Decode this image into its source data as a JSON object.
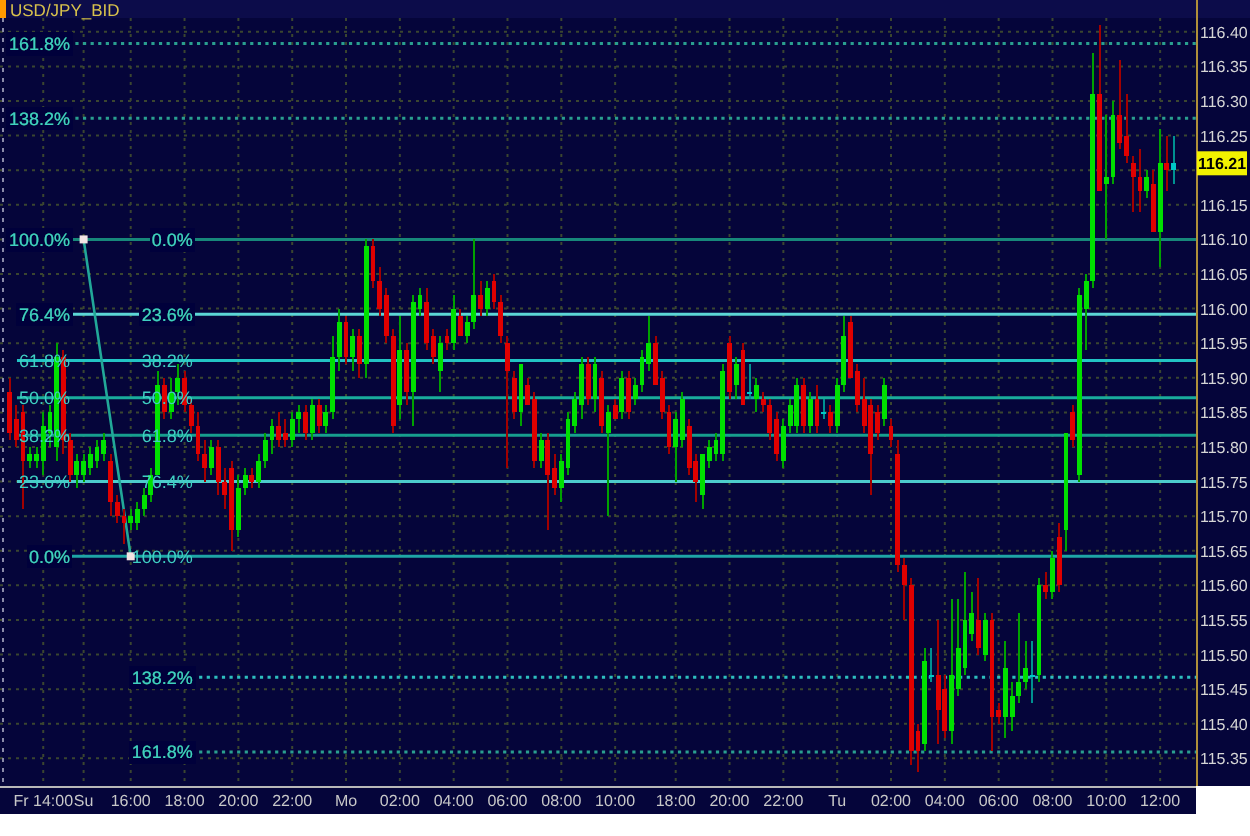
{
  "chart_data": {
    "type": "candlestick",
    "title": "USD/JPY_BID",
    "categories": [
      null,
      null,
      null,
      null,
      null,
      "Fr 14:00",
      null,
      null,
      null,
      null,
      null,
      "Su",
      null,
      null,
      null,
      null,
      null,
      null,
      "16:00",
      null,
      null,
      null,
      null,
      null,
      null,
      null,
      "18:00",
      null,
      null,
      null,
      null,
      null,
      null,
      null,
      "20:00",
      null,
      null,
      null,
      null,
      null,
      null,
      null,
      "22:00",
      null,
      null,
      null,
      null,
      null,
      null,
      null,
      "Mo",
      null,
      null,
      null,
      null,
      null,
      null,
      null,
      "02:00",
      null,
      null,
      null,
      null,
      null,
      null,
      null,
      "04:00",
      null,
      null,
      null,
      null,
      null,
      null,
      null,
      "06:00",
      null,
      null,
      null,
      null,
      null,
      null,
      null,
      "08:00",
      null,
      null,
      null,
      null,
      null,
      null,
      null,
      "10:00",
      null,
      null,
      null,
      null,
      null,
      null,
      null,
      null,
      "18:00",
      null,
      null,
      null,
      null,
      null,
      null,
      null,
      "20:00",
      null,
      null,
      null,
      null,
      null,
      null,
      null,
      "22:00",
      null,
      null,
      null,
      null,
      null,
      null,
      null,
      "Tu",
      null,
      null,
      null,
      null,
      null,
      null,
      null,
      "02:00",
      null,
      null,
      null,
      null,
      null,
      null,
      null,
      "04:00",
      null,
      null,
      null,
      null,
      null,
      null,
      null,
      "06:00",
      null,
      null,
      null,
      null,
      null,
      null,
      null,
      "08:00",
      null,
      null,
      null,
      null,
      null,
      null,
      null,
      "10:00",
      null,
      null,
      null,
      null,
      null,
      null,
      null,
      "12:00",
      null,
      null
    ],
    "ohlc": [
      [
        115.88,
        115.9,
        115.81,
        115.82
      ],
      [
        115.84,
        115.86,
        115.8,
        115.81
      ],
      [
        115.85,
        115.86,
        115.71,
        115.78
      ],
      [
        115.78,
        115.8,
        115.77,
        115.79
      ],
      [
        115.78,
        115.8,
        115.77,
        115.79
      ],
      [
        115.78,
        115.85,
        115.76,
        115.83
      ],
      [
        115.82,
        115.86,
        115.8,
        115.85
      ],
      [
        115.8,
        115.95,
        115.78,
        115.93
      ],
      [
        115.93,
        115.94,
        115.79,
        115.81
      ],
      [
        115.81,
        115.82,
        115.75,
        115.76
      ],
      [
        115.76,
        115.79,
        115.74,
        115.78
      ],
      [
        115.76,
        115.79,
        115.75,
        115.78
      ],
      [
        115.77,
        115.8,
        115.76,
        115.79
      ],
      [
        115.78,
        115.81,
        115.77,
        115.8
      ],
      [
        115.79,
        115.82,
        115.78,
        115.81
      ],
      [
        115.78,
        115.79,
        115.7,
        115.72
      ],
      [
        115.72,
        115.73,
        115.69,
        115.7
      ],
      [
        115.7,
        115.71,
        115.66,
        115.69
      ],
      [
        115.69,
        115.71,
        115.68,
        115.7
      ],
      [
        115.69,
        115.72,
        115.68,
        115.71
      ],
      [
        115.71,
        115.74,
        115.7,
        115.73
      ],
      [
        115.73,
        115.77,
        115.72,
        115.76
      ],
      [
        115.76,
        115.91,
        115.76,
        115.89
      ],
      [
        115.89,
        115.9,
        115.84,
        115.85
      ],
      [
        115.85,
        115.9,
        115.84,
        115.88
      ],
      [
        115.88,
        115.92,
        115.86,
        115.9
      ],
      [
        115.9,
        115.91,
        115.85,
        115.86
      ],
      [
        115.86,
        115.87,
        115.82,
        115.83
      ],
      [
        115.83,
        115.85,
        115.78,
        115.79
      ],
      [
        115.79,
        115.81,
        115.75,
        115.77
      ],
      [
        115.77,
        115.81,
        115.76,
        115.8
      ],
      [
        115.8,
        115.81,
        115.73,
        115.75
      ],
      [
        115.75,
        115.77,
        115.71,
        115.73
      ],
      [
        115.77,
        115.78,
        115.65,
        115.68
      ],
      [
        115.68,
        115.76,
        115.67,
        115.74
      ],
      [
        115.74,
        115.77,
        115.73,
        115.76
      ],
      [
        115.76,
        115.77,
        115.74,
        115.75
      ],
      [
        115.75,
        115.79,
        115.74,
        115.78
      ],
      [
        115.78,
        115.82,
        115.77,
        115.81
      ],
      [
        115.81,
        115.84,
        115.79,
        115.83
      ],
      [
        115.83,
        115.85,
        115.8,
        115.81
      ],
      [
        115.82,
        115.84,
        115.8,
        115.81
      ],
      [
        115.81,
        115.85,
        115.8,
        115.84
      ],
      [
        115.84,
        115.86,
        115.82,
        115.85
      ],
      [
        115.85,
        115.86,
        115.81,
        115.82
      ],
      [
        115.82,
        115.87,
        115.81,
        115.86
      ],
      [
        115.86,
        115.87,
        115.82,
        115.83
      ],
      [
        115.83,
        115.86,
        115.82,
        115.85
      ],
      [
        115.85,
        115.96,
        115.84,
        115.93
      ],
      [
        115.93,
        116.0,
        115.91,
        115.98
      ],
      [
        115.98,
        115.99,
        115.92,
        115.93
      ],
      [
        115.93,
        115.97,
        115.91,
        115.96
      ],
      [
        115.96,
        115.97,
        115.9,
        115.92
      ],
      [
        115.92,
        116.1,
        115.9,
        116.09
      ],
      [
        116.09,
        116.1,
        116.03,
        116.04
      ],
      [
        116.04,
        116.06,
        115.99,
        116.0
      ],
      [
        116.02,
        116.03,
        115.95,
        115.96
      ],
      [
        115.96,
        115.97,
        115.82,
        115.83
      ],
      [
        115.86,
        115.99,
        115.84,
        115.94
      ],
      [
        115.94,
        115.95,
        115.86,
        115.88
      ],
      [
        115.88,
        116.02,
        115.83,
        116.01
      ],
      [
        116.0,
        116.03,
        115.99,
        116.02
      ],
      [
        116.01,
        116.03,
        115.94,
        115.95
      ],
      [
        115.96,
        115.97,
        115.92,
        115.93
      ],
      [
        115.91,
        115.96,
        115.88,
        115.95
      ],
      [
        115.96,
        115.97,
        115.94,
        115.95
      ],
      [
        115.95,
        116.02,
        115.94,
        116.0
      ],
      [
        115.99,
        116.0,
        115.96,
        115.96
      ],
      [
        115.96,
        115.99,
        115.95,
        115.98
      ],
      [
        115.98,
        116.1,
        115.97,
        116.02
      ],
      [
        116.02,
        116.04,
        115.99,
        116.0
      ],
      [
        116.0,
        116.04,
        115.99,
        116.03
      ],
      [
        116.04,
        116.05,
        116.0,
        116.01
      ],
      [
        116.01,
        116.02,
        115.95,
        115.96
      ],
      [
        115.95,
        115.96,
        115.77,
        115.91
      ],
      [
        115.9,
        115.91,
        115.84,
        115.85
      ],
      [
        115.85,
        115.92,
        115.83,
        115.92
      ],
      [
        115.89,
        115.9,
        115.86,
        115.86
      ],
      [
        115.87,
        115.88,
        115.77,
        115.78
      ],
      [
        115.78,
        115.82,
        115.77,
        115.81
      ],
      [
        115.81,
        115.82,
        115.68,
        115.76
      ],
      [
        115.77,
        115.79,
        115.73,
        115.74
      ],
      [
        115.74,
        115.79,
        115.72,
        115.78
      ],
      [
        115.77,
        115.85,
        115.76,
        115.84
      ],
      [
        115.83,
        115.88,
        115.82,
        115.87
      ],
      [
        115.86,
        115.93,
        115.84,
        115.92
      ],
      [
        115.92,
        115.93,
        115.86,
        115.87
      ],
      [
        115.87,
        115.93,
        115.85,
        115.92
      ],
      [
        115.9,
        115.91,
        115.82,
        115.83
      ],
      [
        115.82,
        115.86,
        115.7,
        115.85
      ],
      [
        115.86,
        115.87,
        115.84,
        115.84
      ],
      [
        115.85,
        115.91,
        115.84,
        115.9
      ],
      [
        115.9,
        115.91,
        115.84,
        115.85
      ],
      [
        115.87,
        115.9,
        115.86,
        115.89
      ],
      [
        115.89,
        115.94,
        115.88,
        115.93
      ],
      [
        115.92,
        115.99,
        115.91,
        115.95
      ],
      [
        115.95,
        115.96,
        115.89,
        115.89
      ],
      [
        115.9,
        115.91,
        115.84,
        115.85
      ],
      [
        115.85,
        115.86,
        115.79,
        115.8
      ],
      [
        115.8,
        115.85,
        115.75,
        115.84
      ],
      [
        115.81,
        115.88,
        115.8,
        115.87
      ],
      [
        115.83,
        115.84,
        115.76,
        115.77
      ],
      [
        115.78,
        115.79,
        115.72,
        115.75
      ],
      [
        115.73,
        115.79,
        115.71,
        115.79
      ],
      [
        115.78,
        115.81,
        115.77,
        115.8
      ],
      [
        115.79,
        115.82,
        115.78,
        115.81
      ],
      [
        115.79,
        115.92,
        115.78,
        115.91
      ],
      [
        115.95,
        115.96,
        115.87,
        115.88
      ],
      [
        115.89,
        115.93,
        115.87,
        115.92
      ],
      [
        115.94,
        115.95,
        115.86,
        115.86
      ],
      [
        115.88,
        115.92,
        115.87,
        115.88
      ],
      [
        115.87,
        115.9,
        115.85,
        115.89
      ],
      [
        115.87,
        115.88,
        115.85,
        115.86
      ],
      [
        115.86,
        115.87,
        115.81,
        115.82
      ],
      [
        115.84,
        115.85,
        115.78,
        115.79
      ],
      [
        115.78,
        115.84,
        115.77,
        115.83
      ],
      [
        115.83,
        115.87,
        115.82,
        115.86
      ],
      [
        115.83,
        115.9,
        115.82,
        115.89
      ],
      [
        115.89,
        115.9,
        115.82,
        115.83
      ],
      [
        115.83,
        115.88,
        115.82,
        115.87
      ],
      [
        115.87,
        115.89,
        115.82,
        115.83
      ],
      [
        115.85,
        115.87,
        115.84,
        115.85
      ],
      [
        115.85,
        115.86,
        115.82,
        115.83
      ],
      [
        115.83,
        115.9,
        115.82,
        115.89
      ],
      [
        115.89,
        115.99,
        115.88,
        115.96
      ],
      [
        115.98,
        115.99,
        115.9,
        115.9
      ],
      [
        115.91,
        115.92,
        115.85,
        115.86
      ],
      [
        115.87,
        115.9,
        115.82,
        115.83
      ],
      [
        115.86,
        115.87,
        115.73,
        115.79
      ],
      [
        115.85,
        115.86,
        115.81,
        115.82
      ],
      [
        115.84,
        115.9,
        115.83,
        115.89
      ],
      [
        115.83,
        115.84,
        115.8,
        115.81
      ],
      [
        115.79,
        115.81,
        115.62,
        115.63
      ],
      [
        115.63,
        115.64,
        115.55,
        115.6
      ],
      [
        115.6,
        115.61,
        115.34,
        115.36
      ],
      [
        115.39,
        115.4,
        115.33,
        115.36
      ],
      [
        115.37,
        115.51,
        115.36,
        115.49
      ],
      [
        115.47,
        115.51,
        115.46,
        115.47
      ],
      [
        115.47,
        115.55,
        115.37,
        115.42
      ],
      [
        115.45,
        115.47,
        115.38,
        115.39
      ],
      [
        115.39,
        115.58,
        115.37,
        115.47
      ],
      [
        115.45,
        115.58,
        115.44,
        115.51
      ],
      [
        115.48,
        115.62,
        115.47,
        115.55
      ],
      [
        115.53,
        115.59,
        115.52,
        115.56
      ],
      [
        115.55,
        115.61,
        115.5,
        115.51
      ],
      [
        115.5,
        115.56,
        115.49,
        115.55
      ],
      [
        115.55,
        115.56,
        115.36,
        115.41
      ],
      [
        115.42,
        115.43,
        115.4,
        115.41
      ],
      [
        115.41,
        115.52,
        115.38,
        115.48
      ],
      [
        115.41,
        115.46,
        115.39,
        115.44
      ],
      [
        115.44,
        115.56,
        115.43,
        115.46
      ],
      [
        115.46,
        115.52,
        115.45,
        115.48
      ],
      [
        115.47,
        115.52,
        115.43,
        115.47
      ],
      [
        115.47,
        115.61,
        115.46,
        115.6
      ],
      [
        115.6,
        115.62,
        115.58,
        115.59
      ],
      [
        115.59,
        115.65,
        115.58,
        115.64
      ],
      [
        115.67,
        115.69,
        115.59,
        115.6
      ],
      [
        115.68,
        115.82,
        115.65,
        115.82
      ],
      [
        115.85,
        115.86,
        115.8,
        115.81
      ],
      [
        115.76,
        116.03,
        115.75,
        116.02
      ],
      [
        116.0,
        116.05,
        115.94,
        116.04
      ],
      [
        116.04,
        116.37,
        116.03,
        116.31
      ],
      [
        116.31,
        116.41,
        116.17,
        116.17
      ],
      [
        116.18,
        116.28,
        116.1,
        116.19
      ],
      [
        116.19,
        116.3,
        116.18,
        116.28
      ],
      [
        116.28,
        116.36,
        116.23,
        116.24
      ],
      [
        116.25,
        116.31,
        116.21,
        116.22
      ],
      [
        116.21,
        116.22,
        116.14,
        116.19
      ],
      [
        116.19,
        116.23,
        116.14,
        116.17
      ],
      [
        116.17,
        116.2,
        116.16,
        116.19
      ],
      [
        116.18,
        116.2,
        116.11,
        116.11
      ],
      [
        116.11,
        116.26,
        116.06,
        116.21
      ],
      [
        116.21,
        116.25,
        116.17,
        116.2
      ],
      [
        116.2,
        116.25,
        116.18,
        116.21
      ]
    ],
    "colors": [
      "#e00000",
      "#e00000",
      "#e00000",
      "#00e000",
      "#00e000",
      "#00e000",
      "#00e000",
      "#00e000",
      "#e00000",
      "#e00000",
      "#00e000",
      "#00e000",
      "#00e000",
      "#00e000",
      "#00e000",
      "#e00000",
      "#e00000",
      "#e00000",
      "#00e000",
      "#00e000",
      "#00e000",
      "#00e000",
      "#00e000",
      "#e00000",
      "#00e000",
      "#00e000",
      "#e00000",
      "#e00000",
      "#e00000",
      "#e00000",
      "#00e000",
      "#e00000",
      "#e00000",
      "#e00000",
      "#00e000",
      "#00e000",
      "#e00000",
      "#00e000",
      "#00e000",
      "#00e000",
      "#e00000",
      "#e00000",
      "#00e000",
      "#00e000",
      "#e00000",
      "#00e000",
      "#e00000",
      "#00e000",
      "#00e000",
      "#00e000",
      "#e00000",
      "#00e000",
      "#e00000",
      "#00e000",
      "#e00000",
      "#e00000",
      "#e00000",
      "#e00000",
      "#00e000",
      "#e00000",
      "#00e000",
      "#00e000",
      "#e00000",
      "#e00000",
      "#00e000",
      "#e00000",
      "#00e000",
      "#e00000",
      "#00e000",
      "#00e000",
      "#e00000",
      "#00e000",
      "#e00000",
      "#e00000",
      "#e00000",
      "#e00000",
      "#00e000",
      "#e00000",
      "#e00000",
      "#00e000",
      "#e00000",
      "#e00000",
      "#00e000",
      "#00e000",
      "#00e000",
      "#00e000",
      "#e00000",
      "#00e000",
      "#e00000",
      "#00e000",
      "#e00000",
      "#00e000",
      "#e00000",
      "#00e000",
      "#00e000",
      "#00e000",
      "#e00000",
      "#e00000",
      "#e00000",
      "#00e000",
      "#00e000",
      "#e00000",
      "#e00000",
      "#00e000",
      "#00e000",
      "#00e000",
      "#00e000",
      "#e00000",
      "#00e000",
      "#e00000",
      "#00c8c8",
      "#00e000",
      "#e00000",
      "#e00000",
      "#e00000",
      "#00e000",
      "#00e000",
      "#00e000",
      "#e00000",
      "#00e000",
      "#e00000",
      "#00c8c8",
      "#e00000",
      "#00e000",
      "#00e000",
      "#e00000",
      "#e00000",
      "#e00000",
      "#e00000",
      "#e00000",
      "#00e000",
      "#e00000",
      "#e00000",
      "#e00000",
      "#e00000",
      "#e00000",
      "#00e000",
      "#00c8c8",
      "#e00000",
      "#e00000",
      "#00e000",
      "#00e000",
      "#00e000",
      "#00e000",
      "#e00000",
      "#00e000",
      "#e00000",
      "#e00000",
      "#00e000",
      "#00e000",
      "#00e000",
      "#00e000",
      "#00c8c8",
      "#00e000",
      "#e00000",
      "#00e000",
      "#e00000",
      "#00e000",
      "#e00000",
      "#00e000",
      "#00e000",
      "#00e000",
      "#e00000",
      "#00e000",
      "#00e000",
      "#e00000",
      "#e00000",
      "#e00000",
      "#e00000",
      "#00e000",
      "#e00000",
      "#00e000",
      "#e00000",
      "#00c8c8"
    ],
    "series": [
      {
        "type": "line",
        "x": [
          "Su",
          "16:00"
        ],
        "values": [
          116.1,
          115.642
        ],
        "color": "#22a898"
      }
    ],
    "marker": "square",
    "ylim": [
      115.31,
      116.42
    ],
    "yticks": [
      115.35,
      {
        "value": 115.4,
        "label": "115.40"
      },
      115.45,
      {
        "value": 115.5,
        "label": "115.50"
      },
      115.55,
      {
        "value": 115.6,
        "label": "115.60"
      },
      115.65,
      {
        "value": 115.7,
        "label": "115.70"
      },
      115.75,
      {
        "value": 115.8,
        "label": "115.80"
      },
      115.85,
      {
        "value": 115.9,
        "label": "115.90"
      },
      115.95,
      {
        "value": 116,
        "label": "116.00"
      },
      116.05,
      {
        "value": 116.1,
        "label": "116.10"
      },
      116.15,
      {
        "value": 116.2,
        "label": null
      },
      116.25,
      {
        "value": 116.3,
        "label": "116.30"
      },
      116.35,
      {
        "value": 116.4,
        "label": "116.40"
      }
    ],
    "grid": true,
    "ref_lines": [
      {
        "axis": "y",
        "value": 116.383,
        "color": "#2a9f8f",
        "line_style": "dotted"
      },
      {
        "axis": "y",
        "value": 116.275,
        "color": "#2a9f8f",
        "line_style": "dotted"
      },
      {
        "axis": "y",
        "value": 116.1,
        "color": "#17887a",
        "line_style": "solid"
      },
      {
        "axis": "y",
        "value": 115.992,
        "color": "#5cd6d6",
        "line_style": "solid"
      },
      {
        "axis": "y",
        "value": 115.925,
        "color": "#22c4c4",
        "line_style": "solid"
      },
      {
        "axis": "y",
        "value": 115.871,
        "color": "#19ac9c",
        "line_style": "solid"
      },
      {
        "axis": "y",
        "value": 115.817,
        "color": "#179e8e",
        "line_style": "solid"
      },
      {
        "axis": "y",
        "value": 115.75,
        "color": "#4ccccc",
        "line_style": "solid"
      },
      {
        "axis": "y",
        "value": 115.642,
        "color": "#1ea6a6",
        "line_style": "solid"
      },
      {
        "axis": "y",
        "value": 115.467,
        "color": "#2ebebe",
        "line_style": "dotted"
      },
      {
        "axis": "y",
        "value": 115.359,
        "color": "#2a9f8f",
        "line_style": "dotted"
      }
    ],
    "annotations": [
      {
        "text": "0.0%",
        "x": "16:00",
        "y": 116.1
      },
      {
        "text": "23.6%",
        "x": "16:00",
        "y": 115.992
      },
      {
        "text": "38.2%",
        "x": "16:00",
        "y": 115.925
      },
      {
        "text": "50.0%",
        "x": "16:00",
        "y": 115.871
      },
      {
        "text": "61.8%",
        "x": "16:00",
        "y": 115.817
      },
      {
        "text": "76.4%",
        "x": "16:00",
        "y": 115.75
      },
      {
        "text": "100.0%",
        "x": "16:00",
        "y": 115.642
      },
      {
        "text": "138.2%",
        "x": "16:00",
        "y": 115.467
      },
      {
        "text": "161.8%",
        "x": "16:00",
        "y": 115.359
      },
      {
        "text": "116.21",
        "y": 116.21
      },
      {
        "text": "161.8%",
        "y": 116.383
      },
      {
        "text": "138.2%",
        "y": 116.275
      },
      {
        "text": "100.0%",
        "y": 116.1
      },
      {
        "text": "76.4%",
        "y": 115.992
      },
      {
        "text": "61.8%",
        "y": 115.925
      },
      {
        "text": "50.0%",
        "y": 115.871
      },
      {
        "text": "38.2%",
        "y": 115.817
      },
      {
        "text": "23.6%",
        "y": 115.75
      },
      {
        "text": "0.0%",
        "y": 115.642
      }
    ]
  }
}
